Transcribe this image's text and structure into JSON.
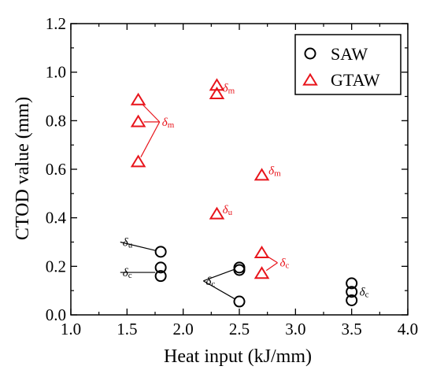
{
  "chart_data": {
    "type": "scatter",
    "xlabel": "Heat input (kJ/mm)",
    "ylabel": "CTOD value (mm)",
    "xlim": [
      1.0,
      4.0
    ],
    "ylim": [
      0.0,
      1.2
    ],
    "x_ticks": [
      "1.0",
      "1.5",
      "2.0",
      "2.5",
      "3.0",
      "3.5",
      "4.0"
    ],
    "y_ticks": [
      "0.0",
      "0.2",
      "0.4",
      "0.6",
      "0.8",
      "1.0",
      "1.2"
    ],
    "grid": false,
    "legend_position": "top-right",
    "series": [
      {
        "name": "SAW",
        "marker": "circle",
        "color": "#000000",
        "points": [
          {
            "x": 1.8,
            "y": 0.26
          },
          {
            "x": 1.8,
            "y": 0.195
          },
          {
            "x": 1.8,
            "y": 0.16
          },
          {
            "x": 2.5,
            "y": 0.195
          },
          {
            "x": 2.5,
            "y": 0.185
          },
          {
            "x": 2.5,
            "y": 0.055
          },
          {
            "x": 3.5,
            "y": 0.13
          },
          {
            "x": 3.5,
            "y": 0.095
          },
          {
            "x": 3.5,
            "y": 0.06
          }
        ]
      },
      {
        "name": "GTAW",
        "marker": "triangle",
        "color": "#e8141b",
        "points": [
          {
            "x": 1.6,
            "y": 0.885
          },
          {
            "x": 1.6,
            "y": 0.795
          },
          {
            "x": 1.6,
            "y": 0.63
          },
          {
            "x": 2.3,
            "y": 0.945
          },
          {
            "x": 2.3,
            "y": 0.91
          },
          {
            "x": 2.3,
            "y": 0.415
          },
          {
            "x": 2.7,
            "y": 0.575
          },
          {
            "x": 2.7,
            "y": 0.255
          },
          {
            "x": 2.7,
            "y": 0.17
          }
        ]
      }
    ],
    "annotations": [
      {
        "symbol": "δ",
        "subscript": "m",
        "color": "#e8141b",
        "x": 2.35,
        "y": 0.935
      },
      {
        "symbol": "δ",
        "subscript": "m",
        "color": "#e8141b",
        "x": 1.79,
        "y": 0.795,
        "lines_to": [
          {
            "x": 1.6,
            "y": 0.885
          },
          {
            "x": 1.6,
            "y": 0.795
          },
          {
            "x": 1.6,
            "y": 0.63
          }
        ]
      },
      {
        "symbol": "δ",
        "subscript": "m",
        "color": "#e8141b",
        "x": 2.76,
        "y": 0.595
      },
      {
        "symbol": "δ",
        "subscript": "u",
        "color": "#e8141b",
        "x": 2.35,
        "y": 0.435
      },
      {
        "symbol": "δ",
        "subscript": "c",
        "color": "#e8141b",
        "x": 2.84,
        "y": 0.215,
        "lines_to": [
          {
            "x": 2.7,
            "y": 0.255
          },
          {
            "x": 2.7,
            "y": 0.17
          }
        ]
      },
      {
        "symbol": "δ",
        "subscript": "u",
        "color": "#000000",
        "x": 1.44,
        "y": 0.3,
        "lines_to": [
          {
            "x": 1.8,
            "y": 0.26
          }
        ]
      },
      {
        "symbol": "δ",
        "subscript": "c",
        "color": "#000000",
        "x": 1.44,
        "y": 0.175,
        "lines_to": [
          {
            "x": 1.8,
            "y": 0.175
          }
        ]
      },
      {
        "symbol": "δ",
        "subscript": "c",
        "color": "#000000",
        "x": 2.18,
        "y": 0.14,
        "lines_to": [
          {
            "x": 2.5,
            "y": 0.195
          },
          {
            "x": 2.5,
            "y": 0.055
          }
        ]
      },
      {
        "symbol": "δ",
        "subscript": "c",
        "color": "#000000",
        "x": 3.57,
        "y": 0.095
      }
    ]
  }
}
